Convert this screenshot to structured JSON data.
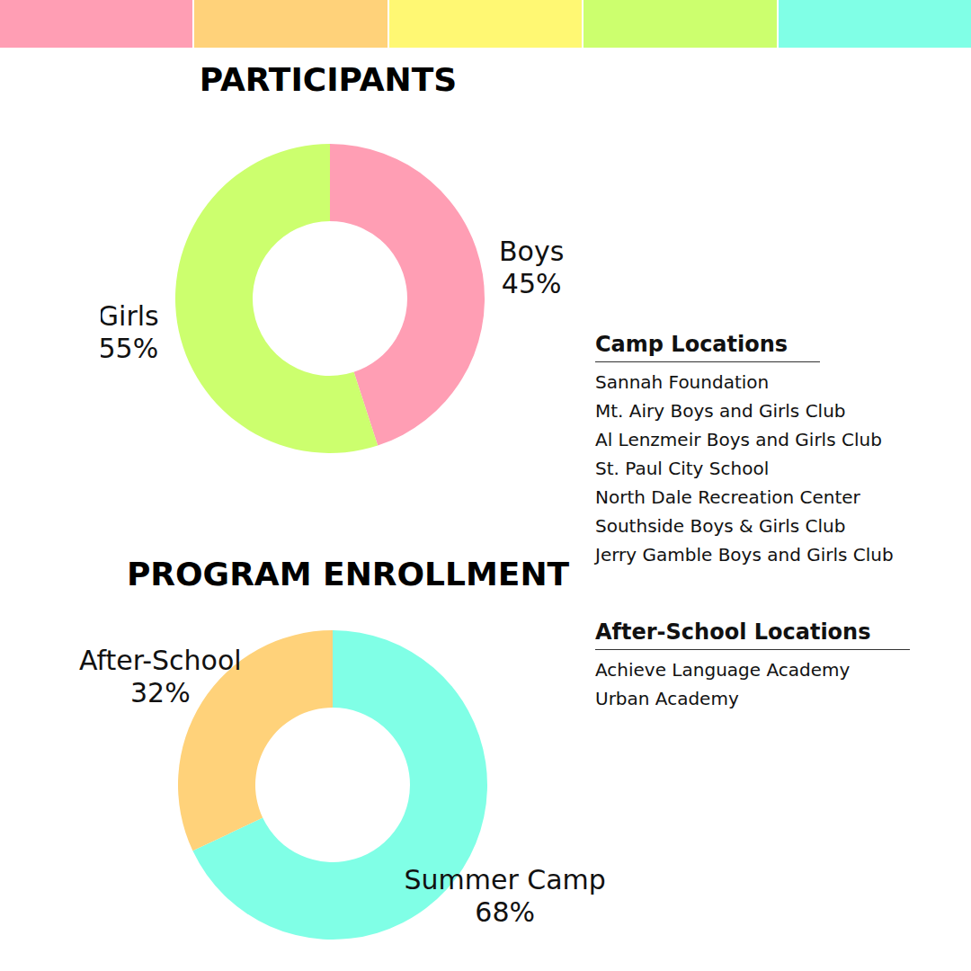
{
  "chart_data": [
    {
      "type": "pie",
      "title": "PARTICIPANTS",
      "categories": [
        "Boys",
        "Girls"
      ],
      "values": [
        45,
        55
      ],
      "value_labels": [
        "45%",
        "55%"
      ],
      "colors": [
        "#ff9eb4",
        "#ccff6e"
      ],
      "data_labels": true
    },
    {
      "type": "pie",
      "title": "PROGRAM ENROLLMENT",
      "categories": [
        "Summer Camp",
        "After-School"
      ],
      "values": [
        68,
        32
      ],
      "value_labels": [
        "68%",
        "32%"
      ],
      "colors": [
        "#80ffe6",
        "#ffd27a"
      ],
      "data_labels": true
    }
  ],
  "lists": [
    {
      "title": "Camp Locations",
      "items": [
        "Sannah Foundation",
        "Mt. Airy Boys and Girls Club",
        "Al Lenzmeir Boys and Girls Club",
        "St. Paul City School",
        "North Dale Recreation Center",
        "Southside Boys & Girls Club",
        "Jerry Gamble Boys and Girls Club"
      ]
    },
    {
      "title": "After-School Locations",
      "items": [
        "Achieve Language Academy",
        "Urban Academy"
      ]
    }
  ]
}
